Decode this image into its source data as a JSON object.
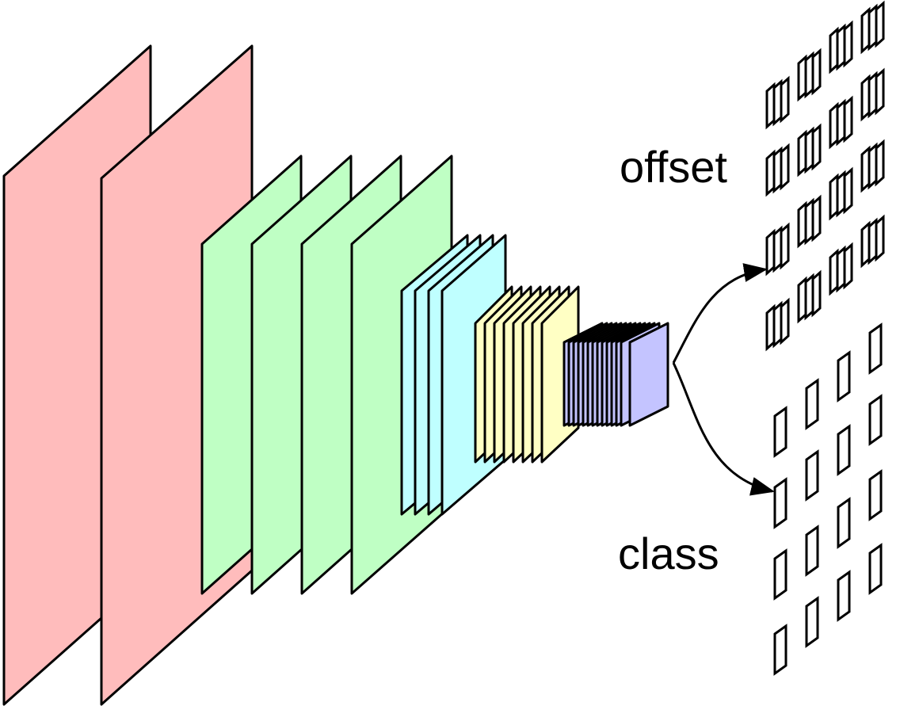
{
  "outputs": [
    {
      "label": "offset"
    },
    {
      "label": "class"
    }
  ]
}
